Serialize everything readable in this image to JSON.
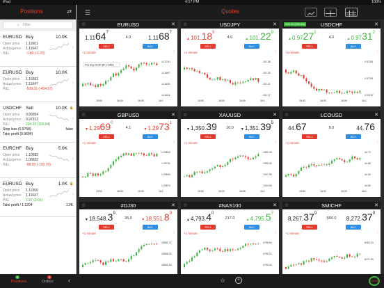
{
  "status": {
    "device": "iPad",
    "time": "4:17 PM",
    "battery": "100%"
  },
  "sidebar": {
    "title": "Positions",
    "filter_placeholder": "Filter",
    "positions": [
      {
        "symbol": "EURUSD",
        "side": "Buy",
        "amount": "10.0K",
        "open_label": "Open price",
        "open": "1.11661",
        "actual_label": "Actual price",
        "actual": "1.11647",
        "pl_label": "P&L",
        "pl": "-1.40 (-1.25)",
        "pl_color": "red",
        "trend": "up"
      },
      {
        "symbol": "EURUSD",
        "side": "Buy",
        "amount": "10.0K",
        "open_label": "Open price",
        "open": "1.16661",
        "actual_label": "Actual price",
        "actual": "1.11647",
        "pl_label": "P&L",
        "pl": "-509.31 (-454.57)",
        "pl_color": "red",
        "trend": "up"
      },
      {
        "symbol": "USDCHF",
        "side": "Sell",
        "amount": "10.0K",
        "open_label": "Open price",
        "open": "0.99354",
        "actual_label": "Actual price",
        "actual": "0.97312",
        "pl_label": "P&L",
        "pl": "204.20 (209.84)",
        "pl_color": "green",
        "extra1_label": "Stop loss (0.9758)",
        "extra1_value": "false",
        "extra2_label": "Take profit (0.9694)",
        "extra2_value": "false",
        "trend": "down"
      },
      {
        "symbol": "EURCHF",
        "side": "Buy",
        "amount": "5.0K",
        "open_label": "Open price",
        "open": "1.10583",
        "actual_label": "Actual price",
        "actual": "1.08622",
        "pl_label": "P&L",
        "pl": "-98.05 (-100.76)",
        "pl_color": "red",
        "trend": "down"
      },
      {
        "symbol": "EURUSD",
        "side": "Buy",
        "amount": "1.0K",
        "open_label": "Open price",
        "open": "1.11350",
        "actual_label": "Actual price",
        "actual": "1.11647",
        "pl_label": "P&L",
        "pl": "2.97 (2.66)",
        "pl_color": "green",
        "extra1_label": "Take profit / 1.1204",
        "extra1_value": "1.0K",
        "trend": "up"
      }
    ]
  },
  "topbar": {
    "title": "Quotes"
  },
  "tiles": [
    {
      "symbol": "EURUSD",
      "bid_small": "1.11",
      "bid_big": "64",
      "bid_sup": "7",
      "ask_small": "1.11",
      "ask_big": "68",
      "ask_sup": "7",
      "spread": "4.0",
      "bid_color": "dark",
      "ask_color": "dark",
      "bid_arrow": "",
      "ask_arrow": "",
      "sell": "SELL",
      "buy": "BUY",
      "tf": "+1 minute",
      "trend": "up",
      "note": "Pos Buy 10.0K @ 1.11661",
      "y_labels": [
        "1.11740",
        "1.11667",
        "1.11625",
        "1.11644"
      ],
      "x_labels": [
        "15:53",
        "16:00",
        "16:09",
        "16:1"
      ]
    },
    {
      "symbol": "USDJPY",
      "bid_small": "101.",
      "bid_big": "18",
      "bid_sup": "9",
      "ask_small": "101.",
      "ask_big": "22",
      "ask_sup": "9",
      "spread": "4.0",
      "bid_color": "red",
      "ask_color": "green",
      "bid_arrow": "up",
      "ask_arrow": "up",
      "sell": "SELL",
      "buy": "BUY",
      "tf": "+1 minute",
      "trend": "down",
      "note": "",
      "y_labels": [
        "101.38",
        "101.30",
        "101.21",
        "101.17"
      ],
      "x_labels": [
        "15:53",
        "16:00",
        "16:09",
        "16:1"
      ]
    },
    {
      "symbol": "USDCHF",
      "bid_small": "0.97",
      "bid_big": "27",
      "bid_sup": "2",
      "ask_small": "0.97",
      "ask_big": "31",
      "ask_sup": "2",
      "spread": "4.0",
      "bid_color": "green",
      "ask_color": "green",
      "bid_arrow": "up",
      "ask_arrow": "up",
      "sell": "SELL",
      "buy": "BUY",
      "tf": "+1 minute",
      "badge": "204.20 (209.84)",
      "trend": "down",
      "note": "",
      "y_labels": [
        "0.97381",
        "0.97291",
        "0.97157"
      ],
      "x_labels": [
        "15:53",
        "16:00",
        "16:09",
        "16:1"
      ]
    },
    {
      "symbol": "GBPUSD",
      "bid_small": "1.29",
      "bid_big": "69",
      "bid_sup": "0",
      "ask_small": "1.29",
      "ask_big": "73",
      "ask_sup": "1",
      "spread": "4.1",
      "bid_color": "red",
      "ask_color": "red",
      "bid_arrow": "down",
      "ask_arrow": "down",
      "sell": "SELL",
      "buy": "BUY",
      "tf": "+1 minute",
      "trend": "up",
      "note": "",
      "y_labels": [
        "1.29843",
        "1.29791",
        "1.29690",
        "1.29670"
      ],
      "x_labels": [
        "15:53",
        "16:00",
        "16:09",
        "16:1"
      ]
    },
    {
      "symbol": "XAUUSD",
      "bid_small": "1,350.",
      "bid_big": "39",
      "bid_sup": "",
      "ask_small": "1,351.",
      "ask_big": "39",
      "ask_sup": "5",
      "spread": "10.0",
      "bid_color": "dark",
      "ask_color": "dark",
      "bid_arrow": "down",
      "ask_arrow": "down",
      "sell": "SELL",
      "buy": "BUY",
      "tf": "+1 minute",
      "trend": "up",
      "note": "",
      "y_labels": [
        "1352.20",
        "1350.90",
        "1347.55",
        "1344.90"
      ],
      "x_labels": [
        "15:53",
        "16:00",
        "16:09",
        "16:1"
      ]
    },
    {
      "symbol": "LCOUSD",
      "bid_small": "44.",
      "bid_big": "67",
      "bid_sup": "",
      "ask_small": "44.",
      "ask_big": "76",
      "ask_sup": "",
      "spread": "9.0",
      "bid_color": "dark",
      "ask_color": "dark",
      "bid_arrow": "",
      "ask_arrow": "",
      "sell": "SELL",
      "buy": "BUY",
      "tf": "+1 minute",
      "trend": "up",
      "note": "",
      "y_labels": [
        "44.73",
        "44.68",
        "44.54",
        "44.50"
      ],
      "x_labels": [
        "15:53",
        "16:00",
        "16:09",
        "16:1"
      ]
    },
    {
      "symbol": "#DJ30",
      "bid_small": "18,548.",
      "bid_big": "3",
      "bid_sup": "9",
      "ask_small": "18,551.",
      "ask_big": "8",
      "ask_sup": "9",
      "spread": "35.0",
      "bid_color": "dark",
      "ask_color": "red",
      "bid_arrow": "down",
      "ask_arrow": "down",
      "sell": "SELL",
      "buy": "BUY",
      "tf": "+1 minute",
      "trend": "up",
      "note": "",
      "y_labels": [
        "18581.07",
        "18568.00",
        "18551.00",
        "18541.93"
      ],
      "x_labels": [
        "15:53",
        "16:00",
        "16:09",
        "16:1"
      ]
    },
    {
      "symbol": "#NAS100",
      "bid_small": "4,793.",
      "bid_big": "4",
      "bid_sup": "0",
      "ask_small": "4,795.",
      "ask_big": "5",
      "ask_sup": "7",
      "spread": "217.0",
      "bid_color": "dark",
      "ask_color": "green",
      "bid_arrow": "up",
      "ask_arrow": "up",
      "sell": "SELL",
      "buy": "BUY",
      "tf": "+1 minute",
      "trend": "up",
      "note": "",
      "y_labels": [
        "4798.60",
        "4795.22",
        "4793.00",
        "4791.29"
      ],
      "x_labels": [
        "15:53",
        "16:00",
        "16:09",
        "16:1"
      ]
    },
    {
      "symbol": "SMICHF",
      "bid_small": "8,267.",
      "bid_big": "37",
      "bid_sup": "9",
      "ask_small": "8,272.",
      "ask_big": "37",
      "ask_sup": "9",
      "spread": "500.0",
      "bid_color": "dark",
      "ask_color": "dark",
      "bid_arrow": "",
      "ask_arrow": "",
      "sell": "SELL",
      "buy": "BUY",
      "tf": "+1 minute",
      "trend": "up",
      "note": "",
      "y_labels": [
        "8283.43",
        "8271.00",
        "8259.92"
      ],
      "x_labels": [
        "15:53",
        "16:00",
        "16:09",
        "16:1"
      ]
    }
  ],
  "bottombar": {
    "positions_label": "Positions",
    "positions_count": "5",
    "orders_label": "Orders",
    "orders_count": "2",
    "gauge_label": "100.00%"
  }
}
